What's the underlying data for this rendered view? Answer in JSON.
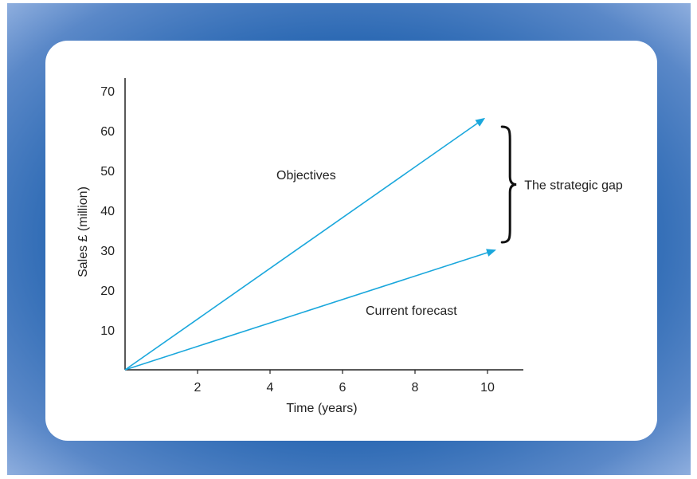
{
  "chart_data": {
    "type": "line",
    "xlabel": "Time (years)",
    "ylabel": "Sales £ (million)",
    "xlim": [
      0,
      11
    ],
    "ylim": [
      0,
      70
    ],
    "x_ticks": [
      2,
      4,
      6,
      8,
      10
    ],
    "y_ticks": [
      10,
      20,
      30,
      40,
      50,
      60,
      70
    ],
    "grid": false,
    "series": [
      {
        "name": "Objectives",
        "x": [
          0,
          9.9
        ],
        "y": [
          0,
          63
        ],
        "color": "#1aa7dc",
        "arrow": true
      },
      {
        "name": "Current forecast",
        "x": [
          0,
          10.2
        ],
        "y": [
          0,
          30
        ],
        "color": "#1aa7dc",
        "arrow": true
      }
    ],
    "annotations": [
      {
        "text": "The strategic gap",
        "type": "brace",
        "x": 10.4,
        "y_from": 32,
        "y_to": 61
      }
    ]
  }
}
